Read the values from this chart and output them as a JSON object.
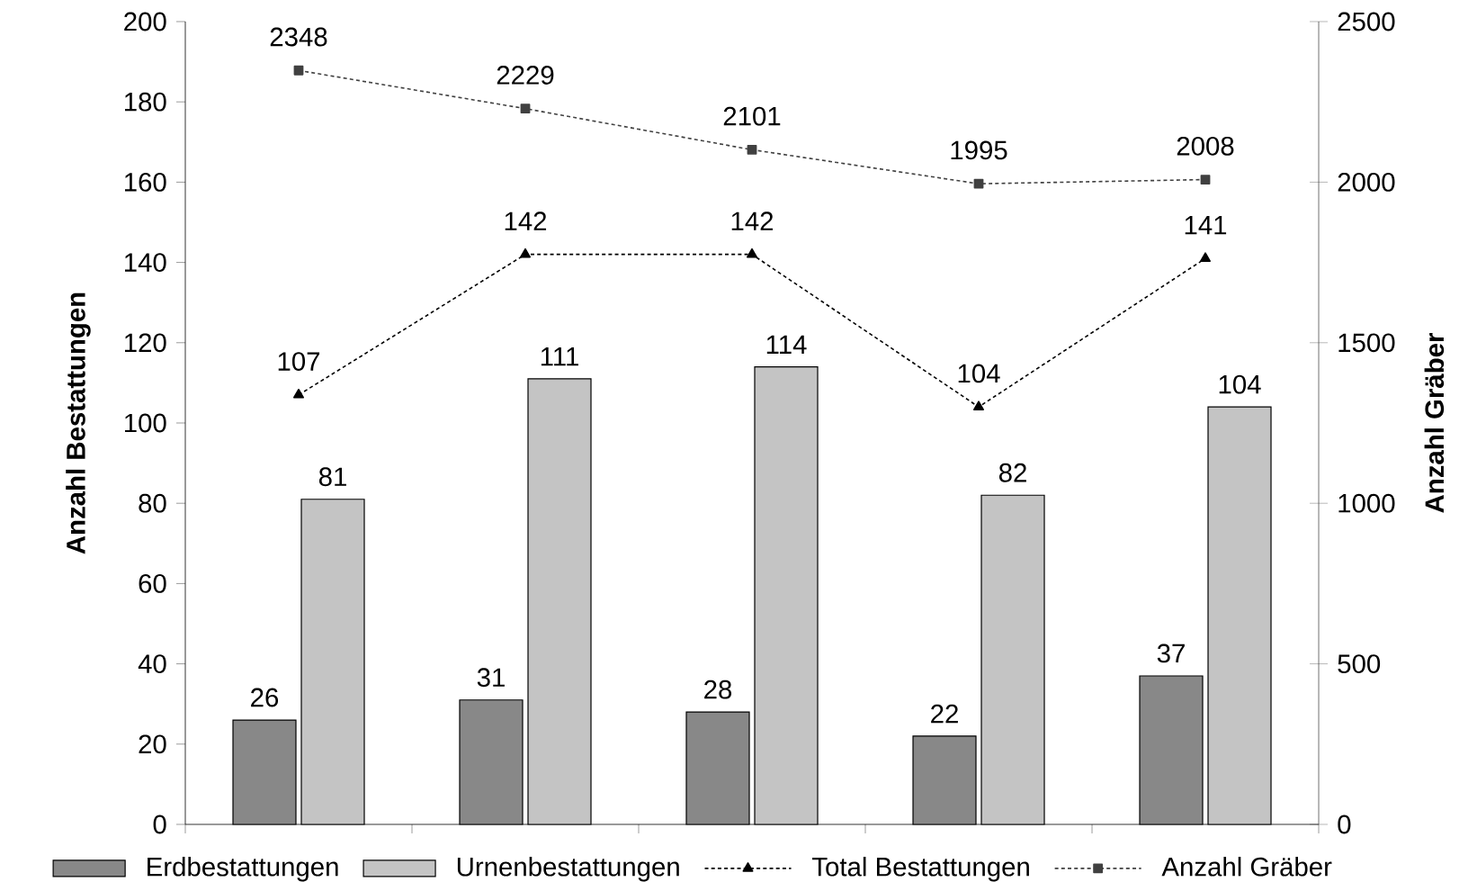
{
  "chart_data": {
    "type": "bar",
    "ylabel": "Anzahl Bestattungen",
    "y2label": "Anzahl Gräber",
    "categories": [
      null,
      null,
      null,
      null,
      null
    ],
    "series": [
      {
        "name": "Erdbestattungen",
        "color": "#888888",
        "values": [
          26,
          31,
          28,
          22,
          37
        ]
      },
      {
        "name": "Urnenbestattungen",
        "color": "#c4c4c4",
        "values": [
          81,
          111,
          114,
          82,
          104
        ]
      },
      {
        "name": "Total Bestattungen",
        "type": "line",
        "color": "#000000",
        "marker": "triangle",
        "line_style": "dashed",
        "values": [
          107,
          142,
          142,
          104,
          141
        ]
      },
      {
        "name": "Anzahl Gräber",
        "type": "line",
        "axis": "y2",
        "color": "#404040",
        "marker": "square",
        "line_style": "dashed",
        "values": [
          2348,
          2229,
          2101,
          1995,
          2008
        ]
      }
    ],
    "ylim": [
      0,
      200
    ],
    "yticks": [
      0,
      20,
      40,
      60,
      80,
      100,
      120,
      140,
      160,
      180,
      200
    ],
    "y2lim": [
      0,
      2500
    ],
    "y2ticks": [
      0,
      500,
      1000,
      1500,
      2000,
      2500
    ],
    "data_labels": true,
    "legend": "bottom"
  }
}
